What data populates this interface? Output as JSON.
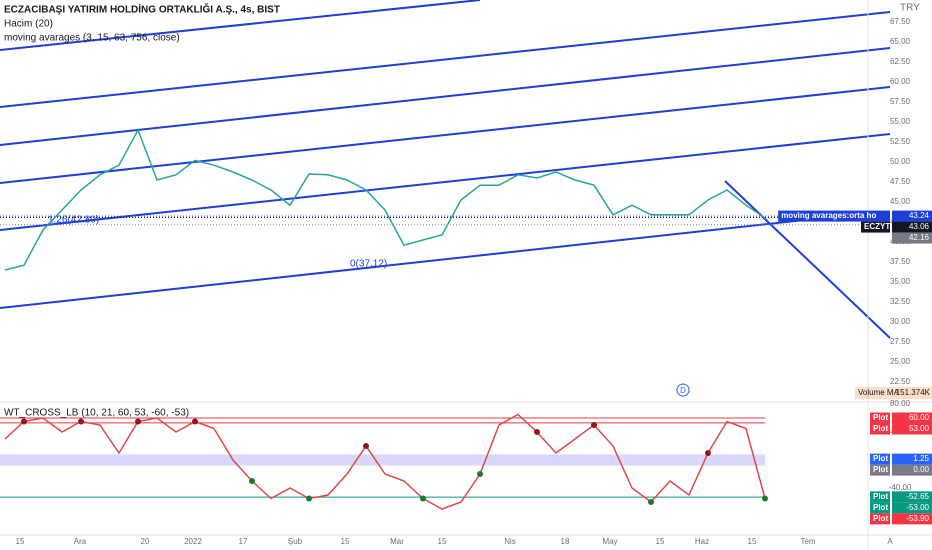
{
  "header": {
    "title": "ECZACIBAŞI YATIRIM HOLDİNG ORTAKLIĞI A.Ş., 4s, BIST",
    "volume": "Hacim (20)",
    "indicator": "moving avarages (3, 15, 63, 756, close)",
    "currency": "TRY"
  },
  "annotations": [
    "1.26(42.80)",
    "0(37.12)"
  ],
  "time_axis": [
    "15",
    "Ara",
    "20",
    "2022",
    "17",
    "Şub",
    "15",
    "Mar",
    "15",
    "Nis",
    "18",
    "May",
    "15",
    "Haz",
    "15",
    "Tem",
    "A"
  ],
  "volume_badge": {
    "name": "Volume MA",
    "label": "151.374K"
  },
  "chart_data": [
    {
      "type": "line",
      "title": "ECZYT",
      "color": "#26a69a",
      "values": [
        36.5,
        37.1,
        41.5,
        44,
        46.5,
        48.4,
        49.6,
        54,
        47.75,
        48.4,
        50.2,
        49.6,
        48.75,
        47.75,
        46.5,
        44.6,
        48.5,
        48.4,
        47.75,
        46.5,
        44,
        39.6,
        40.25,
        40.9,
        45.25,
        47.1,
        47.1,
        48.4,
        48,
        48.75,
        47.75,
        47.1,
        43.4,
        44.6,
        43.4,
        43.4,
        43.4,
        45.25,
        46.5,
        44.6,
        43
      ],
      "ylim": [
        20.25,
        70.25
      ],
      "yticks": [
        {
          "value": 67.5,
          "label": "67.50"
        },
        {
          "value": 65,
          "label": "65.00"
        },
        {
          "value": 62.5,
          "label": "62.50"
        },
        {
          "value": 60,
          "label": "60.00"
        },
        {
          "value": 57.5,
          "label": "57.50"
        },
        {
          "value": 55,
          "label": "55.00"
        },
        {
          "value": 52.5,
          "label": "52.50"
        },
        {
          "value": 50,
          "label": "50.00"
        },
        {
          "value": 47.5,
          "label": "47.50"
        },
        {
          "value": 45,
          "label": "45.00"
        },
        {
          "value": 42.5,
          "label": "42.50"
        },
        {
          "value": 40,
          "label": "40.00"
        },
        {
          "value": 37.5,
          "label": "37.50"
        },
        {
          "value": 35,
          "label": "35.00"
        },
        {
          "value": 32.5,
          "label": "32.50"
        },
        {
          "value": 30,
          "label": "30.00"
        },
        {
          "value": 27.5,
          "label": "27.50"
        },
        {
          "value": 25,
          "label": "25.00"
        },
        {
          "value": 22.5,
          "label": "22.50"
        }
      ],
      "badges": [
        {
          "name": "moving avarages:orta ho",
          "value": 43.24,
          "label": "43.24",
          "color": "#1e3fd8"
        },
        {
          "name": "ECZYT",
          "value": 43.06,
          "label": "43.06",
          "color": "#131722"
        },
        {
          "value": 42.16,
          "label": "42.16",
          "color": "#787b86"
        }
      ]
    },
    {
      "type": "line",
      "title": "WT_CROSS_LB (10, 21, 60, 53, -60, -53)",
      "color": "#e04848",
      "values": [
        30,
        55,
        60,
        40,
        55,
        50,
        10,
        55,
        60,
        40,
        55,
        45,
        0,
        -30,
        -55,
        -40,
        -55,
        -50,
        -20,
        20,
        -20,
        -30,
        -55,
        -70,
        -60,
        -20,
        50,
        65,
        40,
        10,
        30,
        50,
        20,
        -40,
        -60,
        -30,
        -50,
        10,
        55,
        45,
        -55
      ],
      "ylim": [
        -100,
        80
      ],
      "yticks": [
        {
          "value": 80,
          "label": "80.00"
        },
        {
          "value": 40,
          "label": "40.00"
        },
        {
          "value": -40,
          "label": "-40.00"
        }
      ],
      "badges": [
        {
          "name": "Plot",
          "value": 60,
          "label": "60.00",
          "color": "#f23645",
          "line": true
        },
        {
          "name": "Plot",
          "value": 53,
          "label": "53.00",
          "color": "#f23645",
          "line": true
        },
        {
          "name": "Plot",
          "value": 1.25,
          "label": "1.25",
          "color": "#2962ff",
          "line": false
        },
        {
          "name": "Plot",
          "value": 0,
          "label": "0.00",
          "color": "#787b86",
          "line": false
        },
        {
          "name": "Plot",
          "value": -52.65,
          "label": "-52.65",
          "color": "#089981",
          "line": false
        },
        {
          "name": "Plot",
          "value": -53,
          "label": "-53.00",
          "color": "#089981",
          "line": true
        },
        {
          "name": "Plot",
          "value": -53.9,
          "label": "-53.90",
          "color": "#f23645",
          "line": false
        }
      ]
    }
  ]
}
